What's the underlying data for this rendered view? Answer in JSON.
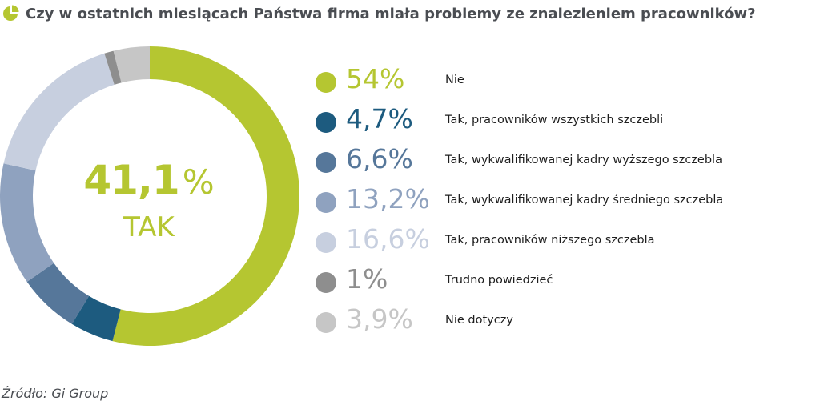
{
  "title": "Czy w ostatnich miesiącach Państwa firma miała problemy ze znalezieniem pracowników?",
  "title_icon": "pie-chart-icon",
  "center": {
    "value": "41,1",
    "unit": "%",
    "label": "TAK"
  },
  "source": "Źródło: Gi Group",
  "colors": {
    "title_icon": "#b5c631",
    "center_text": "#b5c631"
  },
  "chart_data": {
    "type": "pie",
    "subtype": "donut",
    "title": "Czy w ostatnich miesiącach Państwa firma miała problemy ze znalezieniem pracowników?",
    "slices": [
      {
        "label": "Nie",
        "value": 54,
        "display": "54%",
        "color": "#b5c631"
      },
      {
        "label": "Tak, pracowników wszystkich szczebli",
        "value": 4.7,
        "display": "4,7%",
        "color": "#1d5b7f"
      },
      {
        "label": "Tak, wykwalifikowanej kadry wyższego szczebla",
        "value": 6.6,
        "display": "6,6%",
        "color": "#56779a"
      },
      {
        "label": "Tak, wykwalifikowanej kadry średniego szczebla",
        "value": 13.2,
        "display": "13,2%",
        "color": "#8fa2bf"
      },
      {
        "label": "Tak, pracowników niższego szczebla",
        "value": 16.6,
        "display": "16,6%",
        "color": "#c7cfdf"
      },
      {
        "label": "Trudno powiedzieć",
        "value": 1,
        "display": "1%",
        "color": "#8e8e8e"
      },
      {
        "label": "Nie dotyczy",
        "value": 3.9,
        "display": "3,9%",
        "color": "#c6c6c6"
      }
    ],
    "legend_position": "right"
  }
}
